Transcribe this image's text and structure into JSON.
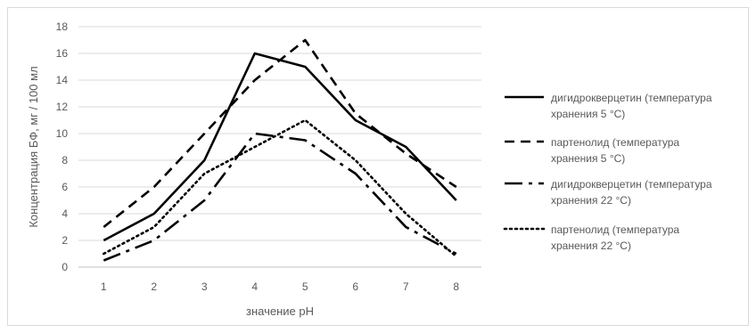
{
  "chart_data": {
    "type": "line",
    "x": [
      1,
      2,
      3,
      4,
      5,
      6,
      7,
      8
    ],
    "xlabel": "значение pH",
    "ylabel": "Концентрация БФ, мг / 100 мл",
    "ylim": [
      0,
      18
    ],
    "yticks": [
      0,
      2,
      4,
      6,
      8,
      10,
      12,
      14,
      16,
      18
    ],
    "grid": true,
    "legend_position": "right",
    "series": [
      {
        "name_lines": [
          "дигидрокверцетин (температура",
          "хранения 5 °С)"
        ],
        "values": [
          2,
          4,
          8,
          16,
          15,
          11,
          9,
          5
        ],
        "dash": "solid",
        "color": "#000000"
      },
      {
        "name_lines": [
          "партенолид (температура",
          "хранения 5 °С)"
        ],
        "values": [
          3,
          6,
          10,
          14,
          17,
          11.5,
          8.5,
          6
        ],
        "dash": "dash",
        "color": "#000000"
      },
      {
        "name_lines": [
          "дигидрокверцетин (температура",
          "хранения 22 °С)"
        ],
        "values": [
          0.5,
          2,
          5,
          10,
          9.5,
          7,
          3,
          1
        ],
        "dash": "longdash",
        "color": "#000000"
      },
      {
        "name_lines": [
          "партенолид (температура",
          "хранения 22 °С)"
        ],
        "values": [
          1,
          3,
          7,
          9,
          11,
          8,
          4,
          0.8
        ],
        "dash": "dot",
        "color": "#000000"
      }
    ]
  }
}
